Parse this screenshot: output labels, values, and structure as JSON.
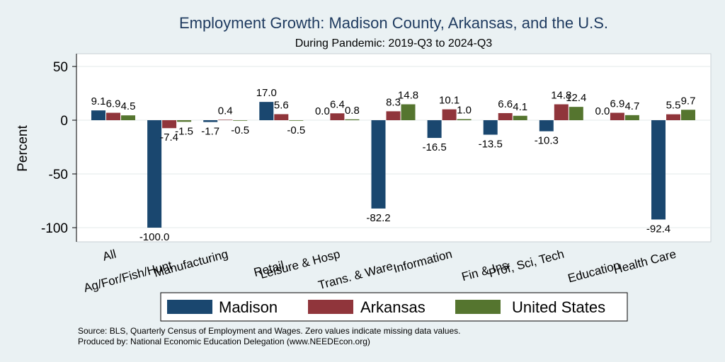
{
  "chart_data": {
    "type": "bar",
    "title": "Employment Growth: Madison County, Arkansas, and the U.S.",
    "subtitle": "During Pandemic: 2019-Q3 to 2024-Q3",
    "ylabel": "Percent",
    "xlabel": "",
    "ylim": [
      -110,
      58
    ],
    "yticks": [
      50,
      0,
      -50,
      -100
    ],
    "categories": [
      "All",
      "Ag/For/Fish/Hunt",
      "Manufacturing",
      "Retail",
      "Leisure & Hosp",
      "Trans. & Ware.",
      "Information",
      "Fin & Ins",
      "Prof, Sci, Tech",
      "Education",
      "Health Care"
    ],
    "series": [
      {
        "name": "Madison",
        "color": "#1a476f",
        "values": [
          9.1,
          -100.0,
          -1.7,
          17.0,
          0.0,
          -82.2,
          -16.5,
          -13.5,
          -10.3,
          0.0,
          -92.4
        ],
        "labels": [
          "9.1",
          "-100.0",
          "-1.7",
          "17.0",
          "0.0",
          "-82.2",
          "-16.5",
          "-13.5",
          "-10.3",
          "0.0",
          "-92.4"
        ]
      },
      {
        "name": "Arkansas",
        "color": "#90353b",
        "values": [
          6.9,
          -7.4,
          0.4,
          5.6,
          6.4,
          8.3,
          10.1,
          6.6,
          14.8,
          6.9,
          5.5
        ],
        "labels": [
          "6.9",
          "-7.4",
          "0.4",
          "5.6",
          "6.4",
          "8.3",
          "10.1",
          "6.6",
          "14.8",
          "6.9",
          "5.5"
        ]
      },
      {
        "name": "United States",
        "color": "#55752f",
        "values": [
          4.5,
          -1.5,
          -0.5,
          -0.5,
          0.8,
          14.8,
          1.0,
          4.1,
          12.4,
          4.7,
          9.7
        ],
        "labels": [
          "4.5",
          "-1.5",
          "-0.5",
          "-0.5",
          "0.8",
          "14.8",
          "1.0",
          "4.1",
          "12.4",
          "4.7",
          "9.7"
        ]
      }
    ],
    "legend_position": "bottom",
    "grid": true
  },
  "notes": {
    "source": "Source: BLS, Quarterly Census of Employment and Wages. Zero values indicate missing data values.",
    "produced_by": "Produced by: National Economic Education Delegation (www.NEEDEcon.org)"
  }
}
